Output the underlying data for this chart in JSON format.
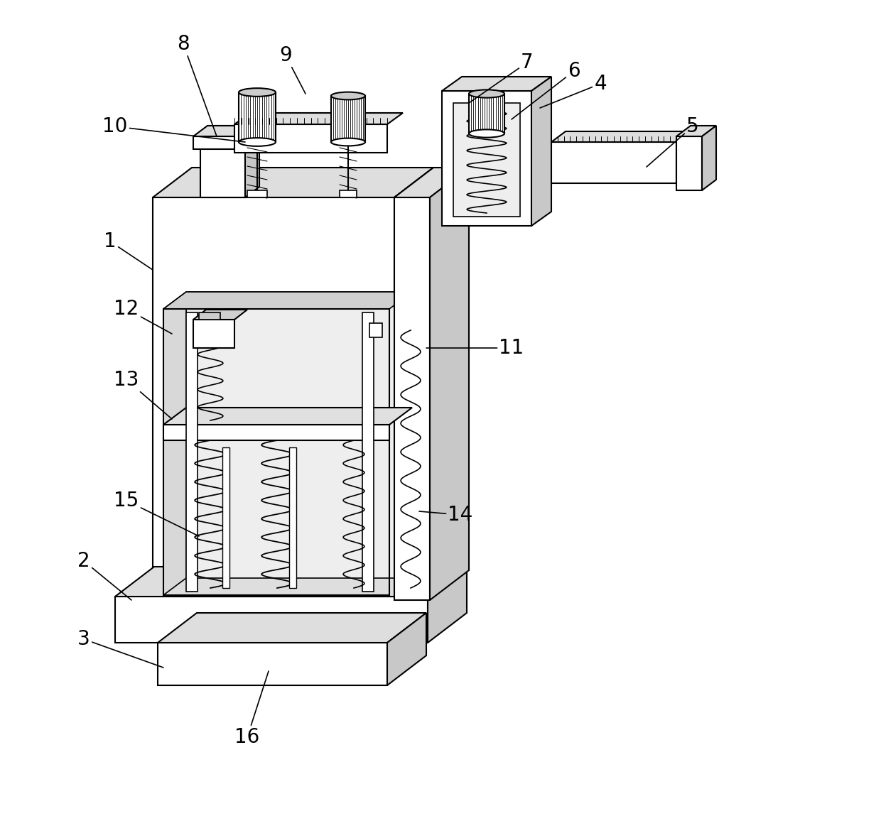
{
  "bg_color": "#ffffff",
  "lw": 1.5,
  "lw_thin": 0.8,
  "lw_med": 1.2,
  "figsize": [
    12.4,
    11.8
  ],
  "dpi": 100,
  "labels": [
    [
      1,
      155,
      340,
      215,
      380
    ],
    [
      2,
      118,
      790,
      185,
      845
    ],
    [
      3,
      118,
      900,
      230,
      940
    ],
    [
      4,
      845,
      118,
      760,
      152
    ],
    [
      5,
      975,
      178,
      910,
      235
    ],
    [
      6,
      808,
      100,
      720,
      168
    ],
    [
      7,
      742,
      88,
      660,
      145
    ],
    [
      8,
      258,
      62,
      305,
      192
    ],
    [
      9,
      402,
      78,
      430,
      132
    ],
    [
      10,
      162,
      178,
      345,
      200
    ],
    [
      11,
      720,
      490,
      600,
      490
    ],
    [
      12,
      178,
      435,
      242,
      470
    ],
    [
      13,
      178,
      535,
      242,
      590
    ],
    [
      14,
      648,
      725,
      590,
      720
    ],
    [
      15,
      178,
      705,
      280,
      755
    ],
    [
      16,
      348,
      1038,
      378,
      945
    ]
  ]
}
